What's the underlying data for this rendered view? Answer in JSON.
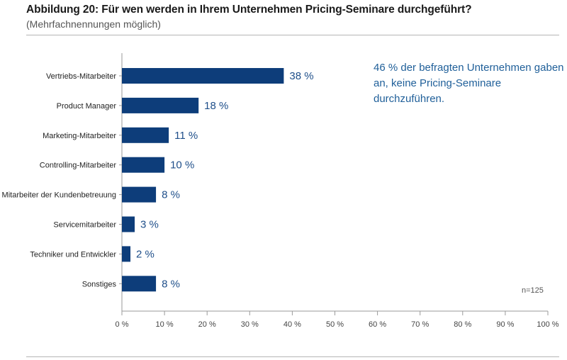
{
  "figure": {
    "title": "Abbildung 20: Für wen werden in Ihrem Unternehmen Pricing-Seminare durchgeführt?",
    "subtitle": "(Mehrfachnennungen möglich)",
    "annotation": "46 % der befragten Unternehmen gaben an, keine Pricing-Seminare durchzuführen.",
    "sample_note": "n=125"
  },
  "colors": {
    "bar": "#0d3d7a",
    "value_label": "#1f4f8a",
    "annotation": "#1f5f99",
    "axis": "#9a9a9a",
    "grid": "#c8c8c8",
    "text": "#222222"
  },
  "chart_data": {
    "type": "bar",
    "orientation": "horizontal",
    "categories": [
      "Vertriebs-Mitarbeiter",
      "Product Manager",
      "Marketing-Mitarbeiter",
      "Controlling-Mitarbeiter",
      "Mitarbeiter der Kundenbetreuung",
      "Servicemitarbeiter",
      "Techniker und Entwickler",
      "Sonstiges"
    ],
    "values": [
      38,
      18,
      11,
      10,
      8,
      3,
      2,
      8
    ],
    "value_labels": [
      "38 %",
      "18 %",
      "11 %",
      "10 %",
      "8 %",
      "3 %",
      "2 %",
      "8 %"
    ],
    "xlim": [
      0,
      100
    ],
    "x_ticks": [
      0,
      10,
      20,
      30,
      40,
      50,
      60,
      70,
      80,
      90,
      100
    ],
    "x_tick_labels": [
      "0 %",
      "10 %",
      "20 %",
      "30 %",
      "40 %",
      "50 %",
      "60 %",
      "70 %",
      "80 %",
      "90 %",
      "100 %"
    ],
    "grid": "x-ticks-only",
    "legend": "none"
  }
}
